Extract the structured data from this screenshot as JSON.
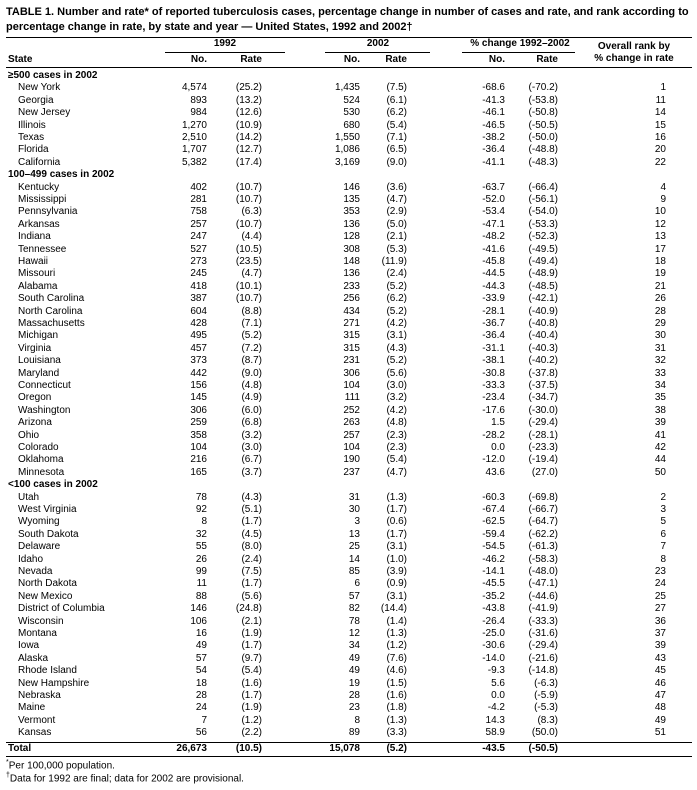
{
  "title": "TABLE 1. Number and rate* of reported tuberculosis cases, percentage change in number of cases and rate, and rank according to percentage change in rate, by state and year — United States, 1992 and 2002†",
  "header": {
    "groups": [
      "1992",
      "2002",
      "% change 1992–2002"
    ],
    "rank": [
      "Overall rank by",
      "% change in rate"
    ],
    "columns": [
      "State",
      "No.",
      "Rate",
      "No.",
      "Rate",
      "No.",
      "Rate"
    ]
  },
  "sections": [
    {
      "label": "≥500 cases in 2002",
      "rows": [
        [
          "New York",
          "4,574",
          "(25.2)",
          "1,435",
          "(7.5)",
          "-68.6",
          "(-70.2)",
          "1"
        ],
        [
          "Georgia",
          "893",
          "(13.2)",
          "524",
          "(6.1)",
          "-41.3",
          "(-53.8)",
          "11"
        ],
        [
          "New Jersey",
          "984",
          "(12.6)",
          "530",
          "(6.2)",
          "-46.1",
          "(-50.8)",
          "14"
        ],
        [
          "Illinois",
          "1,270",
          "(10.9)",
          "680",
          "(5.4)",
          "-46.5",
          "(-50.5)",
          "15"
        ],
        [
          "Texas",
          "2,510",
          "(14.2)",
          "1,550",
          "(7.1)",
          "-38.2",
          "(-50.0)",
          "16"
        ],
        [
          "Florida",
          "1,707",
          "(12.7)",
          "1,086",
          "(6.5)",
          "-36.4",
          "(-48.8)",
          "20"
        ],
        [
          "California",
          "5,382",
          "(17.4)",
          "3,169",
          "(9.0)",
          "-41.1",
          "(-48.3)",
          "22"
        ]
      ]
    },
    {
      "label": "100–499 cases in 2002",
      "rows": [
        [
          "Kentucky",
          "402",
          "(10.7)",
          "146",
          "(3.6)",
          "-63.7",
          "(-66.4)",
          "4"
        ],
        [
          "Mississippi",
          "281",
          "(10.7)",
          "135",
          "(4.7)",
          "-52.0",
          "(-56.1)",
          "9"
        ],
        [
          "Pennsylvania",
          "758",
          "(6.3)",
          "353",
          "(2.9)",
          "-53.4",
          "(-54.0)",
          "10"
        ],
        [
          "Arkansas",
          "257",
          "(10.7)",
          "136",
          "(5.0)",
          "-47.1",
          "(-53.3)",
          "12"
        ],
        [
          "Indiana",
          "247",
          "(4.4)",
          "128",
          "(2.1)",
          "-48.2",
          "(-52.3)",
          "13"
        ],
        [
          "Tennessee",
          "527",
          "(10.5)",
          "308",
          "(5.3)",
          "-41.6",
          "(-49.5)",
          "17"
        ],
        [
          "Hawaii",
          "273",
          "(23.5)",
          "148",
          "(11.9)",
          "-45.8",
          "(-49.4)",
          "18"
        ],
        [
          "Missouri",
          "245",
          "(4.7)",
          "136",
          "(2.4)",
          "-44.5",
          "(-48.9)",
          "19"
        ],
        [
          "Alabama",
          "418",
          "(10.1)",
          "233",
          "(5.2)",
          "-44.3",
          "(-48.5)",
          "21"
        ],
        [
          "South Carolina",
          "387",
          "(10.7)",
          "256",
          "(6.2)",
          "-33.9",
          "(-42.1)",
          "26"
        ],
        [
          "North Carolina",
          "604",
          "(8.8)",
          "434",
          "(5.2)",
          "-28.1",
          "(-40.9)",
          "28"
        ],
        [
          "Massachusetts",
          "428",
          "(7.1)",
          "271",
          "(4.2)",
          "-36.7",
          "(-40.8)",
          "29"
        ],
        [
          "Michigan",
          "495",
          "(5.2)",
          "315",
          "(3.1)",
          "-36.4",
          "(-40.4)",
          "30"
        ],
        [
          "Virginia",
          "457",
          "(7.2)",
          "315",
          "(4.3)",
          "-31.1",
          "(-40.3)",
          "31"
        ],
        [
          "Louisiana",
          "373",
          "(8.7)",
          "231",
          "(5.2)",
          "-38.1",
          "(-40.2)",
          "32"
        ],
        [
          "Maryland",
          "442",
          "(9.0)",
          "306",
          "(5.6)",
          "-30.8",
          "(-37.8)",
          "33"
        ],
        [
          "Connecticut",
          "156",
          "(4.8)",
          "104",
          "(3.0)",
          "-33.3",
          "(-37.5)",
          "34"
        ],
        [
          "Oregon",
          "145",
          "(4.9)",
          "111",
          "(3.2)",
          "-23.4",
          "(-34.7)",
          "35"
        ],
        [
          "Washington",
          "306",
          "(6.0)",
          "252",
          "(4.2)",
          "-17.6",
          "(-30.0)",
          "38"
        ],
        [
          "Arizona",
          "259",
          "(6.8)",
          "263",
          "(4.8)",
          "1.5",
          "(-29.4)",
          "39"
        ],
        [
          "Ohio",
          "358",
          "(3.2)",
          "257",
          "(2.3)",
          "-28.2",
          "(-28.1)",
          "41"
        ],
        [
          "Colorado",
          "104",
          "(3.0)",
          "104",
          "(2.3)",
          "0.0",
          "(-23.3)",
          "42"
        ],
        [
          "Oklahoma",
          "216",
          "(6.7)",
          "190",
          "(5.4)",
          "-12.0",
          "(-19.4)",
          "44"
        ],
        [
          "Minnesota",
          "165",
          "(3.7)",
          "237",
          "(4.7)",
          "43.6",
          "(27.0)",
          "50"
        ]
      ]
    },
    {
      "label": "<100 cases in 2002",
      "rows": [
        [
          "Utah",
          "78",
          "(4.3)",
          "31",
          "(1.3)",
          "-60.3",
          "(-69.8)",
          "2"
        ],
        [
          "West Virginia",
          "92",
          "(5.1)",
          "30",
          "(1.7)",
          "-67.4",
          "(-66.7)",
          "3"
        ],
        [
          "Wyoming",
          "8",
          "(1.7)",
          "3",
          "(0.6)",
          "-62.5",
          "(-64.7)",
          "5"
        ],
        [
          "South Dakota",
          "32",
          "(4.5)",
          "13",
          "(1.7)",
          "-59.4",
          "(-62.2)",
          "6"
        ],
        [
          "Delaware",
          "55",
          "(8.0)",
          "25",
          "(3.1)",
          "-54.5",
          "(-61.3)",
          "7"
        ],
        [
          "Idaho",
          "26",
          "(2.4)",
          "14",
          "(1.0)",
          "-46.2",
          "(-58.3)",
          "8"
        ],
        [
          "Nevada",
          "99",
          "(7.5)",
          "85",
          "(3.9)",
          "-14.1",
          "(-48.0)",
          "23"
        ],
        [
          "North Dakota",
          "11",
          "(1.7)",
          "6",
          "(0.9)",
          "-45.5",
          "(-47.1)",
          "24"
        ],
        [
          "New Mexico",
          "88",
          "(5.6)",
          "57",
          "(3.1)",
          "-35.2",
          "(-44.6)",
          "25"
        ],
        [
          "District of Columbia",
          "146",
          "(24.8)",
          "82",
          "(14.4)",
          "-43.8",
          "(-41.9)",
          "27"
        ],
        [
          "Wisconsin",
          "106",
          "(2.1)",
          "78",
          "(1.4)",
          "-26.4",
          "(-33.3)",
          "36"
        ],
        [
          "Montana",
          "16",
          "(1.9)",
          "12",
          "(1.3)",
          "-25.0",
          "(-31.6)",
          "37"
        ],
        [
          "Iowa",
          "49",
          "(1.7)",
          "34",
          "(1.2)",
          "-30.6",
          "(-29.4)",
          "39"
        ],
        [
          "Alaska",
          "57",
          "(9.7)",
          "49",
          "(7.6)",
          "-14.0",
          "(-21.6)",
          "43"
        ],
        [
          "Rhode Island",
          "54",
          "(5.4)",
          "49",
          "(4.6)",
          "-9.3",
          "(-14.8)",
          "45"
        ],
        [
          "New Hampshire",
          "18",
          "(1.6)",
          "19",
          "(1.5)",
          "5.6",
          "(-6.3)",
          "46"
        ],
        [
          "Nebraska",
          "28",
          "(1.7)",
          "28",
          "(1.6)",
          "0.0",
          "(-5.9)",
          "47"
        ],
        [
          "Maine",
          "24",
          "(1.9)",
          "23",
          "(1.8)",
          "-4.2",
          "(-5.3)",
          "48"
        ],
        [
          "Vermont",
          "7",
          "(1.2)",
          "8",
          "(1.3)",
          "14.3",
          "(8.3)",
          "49"
        ],
        [
          "Kansas",
          "56",
          "(2.2)",
          "89",
          "(3.3)",
          "58.9",
          "(50.0)",
          "51"
        ]
      ]
    }
  ],
  "total": [
    "Total",
    "26,673",
    "(10.5)",
    "15,078",
    "(5.2)",
    "-43.5",
    "(-50.5)"
  ],
  "footnotes": [
    {
      "mark": "*",
      "text": "Per 100,000 population."
    },
    {
      "mark": "†",
      "text": "Data for 1992 are final; data for 2002 are provisional."
    }
  ]
}
